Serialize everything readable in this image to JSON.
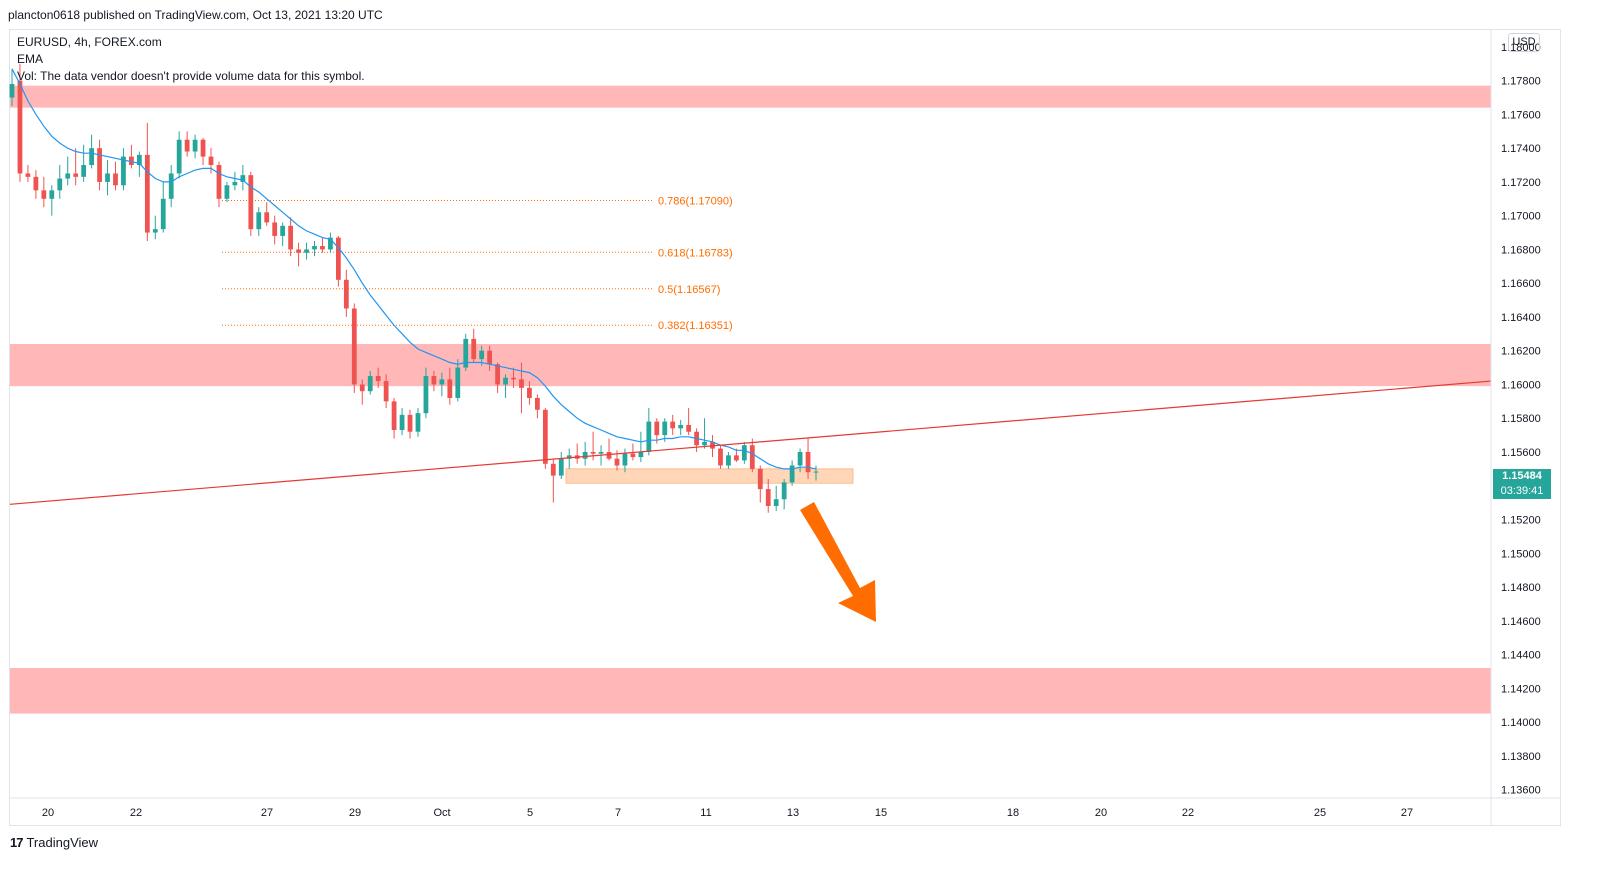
{
  "header": {
    "published_text": "plancton0618 published on TradingView.com, Oct 13, 2021 13:20 UTC"
  },
  "legend": {
    "symbol_line": "EURUSD, 4h, FOREX.com",
    "ema_label": "EMA",
    "vol_text": "Vol: The data vendor doesn't provide volume data for this symbol."
  },
  "axis": {
    "currency_button": "USD"
  },
  "last_price": {
    "price": "1.15484",
    "countdown": "03:39:41",
    "color": "#26a69a"
  },
  "footer": {
    "brand": "TradingView",
    "logo_glyph": "17"
  },
  "colors": {
    "up": "#26a69a",
    "down": "#ef5350",
    "ema": "#2196f3",
    "zone": "#ffb7b7",
    "small_zone": "#ffd7b8",
    "trendline": "#e53935",
    "arrow": "#ff6d00",
    "fib": "#ff6d00"
  },
  "chart_data": {
    "type": "candlestick",
    "symbol": "EURUSD",
    "timeframe": "4h",
    "y_range": [
      1.1355,
      1.181
    ],
    "y_ticks": [
      "1.18000",
      "1.17800",
      "1.17600",
      "1.17400",
      "1.17200",
      "1.17000",
      "1.16800",
      "1.16600",
      "1.16400",
      "1.16200",
      "1.16000",
      "1.15800",
      "1.15600",
      "1.15200",
      "1.15000",
      "1.14800",
      "1.14600",
      "1.14400",
      "1.14200",
      "1.14000",
      "1.13800",
      "1.13600"
    ],
    "x_ticks": [
      "20",
      "22",
      "27",
      "29",
      "Oct",
      "5",
      "7",
      "11",
      "13",
      "15",
      "18",
      "20",
      "22",
      "25",
      "27"
    ],
    "fib_levels": [
      {
        "label": "0.786(1.17090)",
        "value": 1.1709
      },
      {
        "label": "0.618(1.16783)",
        "value": 1.16783
      },
      {
        "label": "0.5(1.16567)",
        "value": 1.16567
      },
      {
        "label": "0.382(1.16351)",
        "value": 1.16351
      }
    ],
    "zones": [
      {
        "from": 1.1764,
        "to": 1.1777
      },
      {
        "from": 1.1599,
        "to": 1.1624
      },
      {
        "from": 1.1405,
        "to": 1.1432
      }
    ],
    "support_box": {
      "from": 1.15415,
      "to": 1.155
    },
    "trendline": {
      "start_price": 1.1529,
      "end_price": 1.1602
    },
    "candles": [
      [
        1.177,
        1.1787,
        1.1765,
        1.1778
      ],
      [
        1.178,
        1.179,
        1.172,
        1.1725
      ],
      [
        1.1725,
        1.173,
        1.172,
        1.1723
      ],
      [
        1.1723,
        1.1727,
        1.171,
        1.1715
      ],
      [
        1.1715,
        1.1723,
        1.1705,
        1.171
      ],
      [
        1.171,
        1.1718,
        1.17,
        1.1715
      ],
      [
        1.1715,
        1.173,
        1.171,
        1.1722
      ],
      [
        1.1722,
        1.1735,
        1.1718,
        1.1725
      ],
      [
        1.1725,
        1.174,
        1.1718,
        1.1723
      ],
      [
        1.1723,
        1.1742,
        1.172,
        1.173
      ],
      [
        1.173,
        1.1748,
        1.1728,
        1.174
      ],
      [
        1.174,
        1.1745,
        1.1715,
        1.172
      ],
      [
        1.172,
        1.1733,
        1.1712,
        1.1725
      ],
      [
        1.1725,
        1.1732,
        1.1715,
        1.1718
      ],
      [
        1.1718,
        1.174,
        1.1715,
        1.1735
      ],
      [
        1.1735,
        1.1742,
        1.1728,
        1.173
      ],
      [
        1.173,
        1.1738,
        1.1723,
        1.1736
      ],
      [
        1.1736,
        1.1755,
        1.1685,
        1.169
      ],
      [
        1.169,
        1.17,
        1.1686,
        1.1692
      ],
      [
        1.1692,
        1.172,
        1.169,
        1.171
      ],
      [
        1.171,
        1.173,
        1.1705,
        1.1725
      ],
      [
        1.1725,
        1.175,
        1.1722,
        1.1745
      ],
      [
        1.1745,
        1.175,
        1.1735,
        1.1738
      ],
      [
        1.1738,
        1.1748,
        1.1734,
        1.1745
      ],
      [
        1.1745,
        1.1746,
        1.173,
        1.1735
      ],
      [
        1.1735,
        1.174,
        1.1725,
        1.173
      ],
      [
        1.173,
        1.1732,
        1.1705,
        1.171
      ],
      [
        1.171,
        1.172,
        1.1708,
        1.1718
      ],
      [
        1.1718,
        1.1726,
        1.1715,
        1.172
      ],
      [
        1.172,
        1.173,
        1.1715,
        1.1724
      ],
      [
        1.1724,
        1.1726,
        1.1688,
        1.1692
      ],
      [
        1.1692,
        1.1705,
        1.1688,
        1.1702
      ],
      [
        1.1702,
        1.1708,
        1.1694,
        1.1696
      ],
      [
        1.1696,
        1.17,
        1.1683,
        1.1688
      ],
      [
        1.1688,
        1.1696,
        1.1682,
        1.1694
      ],
      [
        1.1694,
        1.1699,
        1.1676,
        1.168
      ],
      [
        1.168,
        1.1684,
        1.167,
        1.1678
      ],
      [
        1.1678,
        1.1684,
        1.1674,
        1.168
      ],
      [
        1.168,
        1.1685,
        1.1676,
        1.1682
      ],
      [
        1.1682,
        1.1687,
        1.1678,
        1.168
      ],
      [
        1.168,
        1.169,
        1.1678,
        1.1687
      ],
      [
        1.1687,
        1.1688,
        1.1658,
        1.1662
      ],
      [
        1.1662,
        1.1668,
        1.164,
        1.1645
      ],
      [
        1.1645,
        1.1648,
        1.1595,
        1.16
      ],
      [
        1.16,
        1.1603,
        1.1588,
        1.1596
      ],
      [
        1.1596,
        1.1608,
        1.1594,
        1.1605
      ],
      [
        1.1605,
        1.161,
        1.1598,
        1.1602
      ],
      [
        1.1602,
        1.1606,
        1.1586,
        1.159
      ],
      [
        1.159,
        1.1592,
        1.1568,
        1.1573
      ],
      [
        1.1573,
        1.1586,
        1.157,
        1.1582
      ],
      [
        1.1582,
        1.1585,
        1.1568,
        1.1572
      ],
      [
        1.1572,
        1.1586,
        1.1569,
        1.1583
      ],
      [
        1.1583,
        1.161,
        1.158,
        1.1605
      ],
      [
        1.1605,
        1.1608,
        1.1596,
        1.16
      ],
      [
        1.16,
        1.1607,
        1.1593,
        1.1603
      ],
      [
        1.1603,
        1.161,
        1.1588,
        1.1592
      ],
      [
        1.1592,
        1.1615,
        1.159,
        1.161
      ],
      [
        1.161,
        1.163,
        1.1608,
        1.1627
      ],
      [
        1.1627,
        1.1633,
        1.1613,
        1.1615
      ],
      [
        1.1615,
        1.1623,
        1.1611,
        1.162
      ],
      [
        1.162,
        1.1623,
        1.1608,
        1.1612
      ],
      [
        1.1612,
        1.1613,
        1.1595,
        1.16
      ],
      [
        1.16,
        1.1606,
        1.1592,
        1.1604
      ],
      [
        1.1604,
        1.161,
        1.1598,
        1.1603
      ],
      [
        1.1603,
        1.1613,
        1.1583,
        1.1598
      ],
      [
        1.1598,
        1.1602,
        1.1588,
        1.1592
      ],
      [
        1.1592,
        1.1594,
        1.158,
        1.1585
      ],
      [
        1.1585,
        1.1586,
        1.155,
        1.1553
      ],
      [
        1.1553,
        1.1556,
        1.153,
        1.1546
      ],
      [
        1.1546,
        1.156,
        1.1544,
        1.1556
      ],
      [
        1.1556,
        1.1562,
        1.155,
        1.1558
      ],
      [
        1.1558,
        1.1565,
        1.1553,
        1.1556
      ],
      [
        1.1556,
        1.1566,
        1.1552,
        1.156
      ],
      [
        1.156,
        1.1572,
        1.1555,
        1.1559
      ],
      [
        1.1559,
        1.1564,
        1.1552,
        1.156
      ],
      [
        1.156,
        1.1568,
        1.1555,
        1.1556
      ],
      [
        1.1556,
        1.1561,
        1.1549,
        1.1552
      ],
      [
        1.1552,
        1.1562,
        1.1548,
        1.1559
      ],
      [
        1.1559,
        1.1565,
        1.1555,
        1.1557
      ],
      [
        1.1557,
        1.1572,
        1.1554,
        1.156
      ],
      [
        1.156,
        1.1586,
        1.1558,
        1.1578
      ],
      [
        1.1578,
        1.158,
        1.1565,
        1.157
      ],
      [
        1.157,
        1.158,
        1.1566,
        1.1578
      ],
      [
        1.1578,
        1.1582,
        1.157,
        1.1574
      ],
      [
        1.1574,
        1.1579,
        1.157,
        1.1576
      ],
      [
        1.1576,
        1.1586,
        1.157,
        1.1572
      ],
      [
        1.1572,
        1.1574,
        1.156,
        1.1564
      ],
      [
        1.1564,
        1.158,
        1.1562,
        1.1566
      ],
      [
        1.1566,
        1.157,
        1.1557,
        1.1562
      ],
      [
        1.1562,
        1.1564,
        1.155,
        1.1552
      ],
      [
        1.1552,
        1.156,
        1.155,
        1.1558
      ],
      [
        1.1558,
        1.1562,
        1.1554,
        1.1555
      ],
      [
        1.1555,
        1.1566,
        1.1553,
        1.1564
      ],
      [
        1.1564,
        1.1568,
        1.1548,
        1.155
      ],
      [
        1.155,
        1.1552,
        1.153,
        1.1538
      ],
      [
        1.1538,
        1.1544,
        1.1524,
        1.1528
      ],
      [
        1.1528,
        1.154,
        1.1525,
        1.1532
      ],
      [
        1.1532,
        1.1544,
        1.1526,
        1.1542
      ],
      [
        1.1542,
        1.1555,
        1.154,
        1.1552
      ],
      [
        1.1552,
        1.1562,
        1.1548,
        1.156
      ],
      [
        1.156,
        1.1568,
        1.1544,
        1.1548
      ],
      [
        1.1548,
        1.1552,
        1.1543,
        1.15484
      ]
    ],
    "ema": [
      1.1787,
      1.1778,
      1.1768,
      1.176,
      1.1753,
      1.1747,
      1.1743,
      1.174,
      1.1738,
      1.1737,
      1.1737,
      1.1736,
      1.1735,
      1.1734,
      1.1733,
      1.1732,
      1.1731,
      1.1726,
      1.1722,
      1.172,
      1.172,
      1.1723,
      1.1725,
      1.1727,
      1.1728,
      1.1728,
      1.1725,
      1.1723,
      1.1722,
      1.1721,
      1.1717,
      1.1714,
      1.171,
      1.1706,
      1.1702,
      1.1698,
      1.1694,
      1.1691,
      1.1689,
      1.1687,
      1.1686,
      1.1681,
      1.1675,
      1.1668,
      1.166,
      1.1653,
      1.1647,
      1.1641,
      1.1635,
      1.163,
      1.1625,
      1.1621,
      1.1619,
      1.1617,
      1.1615,
      1.1613,
      1.1612,
      1.1613,
      1.1613,
      1.1613,
      1.1612,
      1.1611,
      1.161,
      1.1609,
      1.1608,
      1.1607,
      1.1604,
      1.1599,
      1.1593,
      1.1588,
      1.1584,
      1.158,
      1.1577,
      1.1575,
      1.1573,
      1.1571,
      1.1569,
      1.1568,
      1.1567,
      1.1566,
      1.1567,
      1.1567,
      1.1568,
      1.1568,
      1.1569,
      1.1569,
      1.1568,
      1.1567,
      1.1566,
      1.1564,
      1.1563,
      1.1561,
      1.1561,
      1.1559,
      1.1556,
      1.1553,
      1.1551,
      1.155,
      1.155,
      1.1551,
      1.1551,
      1.155
    ]
  }
}
